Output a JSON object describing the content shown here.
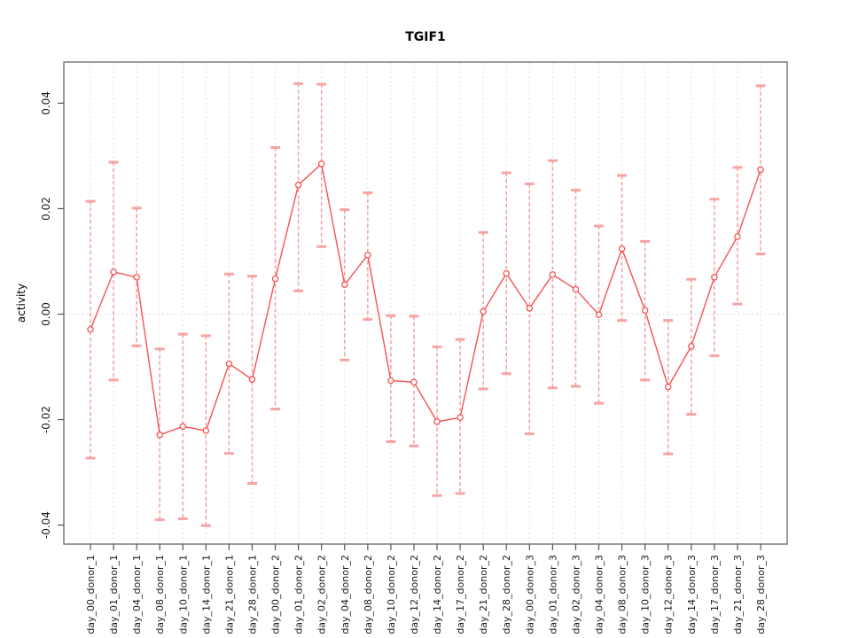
{
  "chart_data": {
    "type": "line",
    "title": "TGIF1",
    "xlabel": "",
    "ylabel": "activity",
    "legend_position": "none",
    "marker": "open-circle",
    "error_bars": true,
    "grid": {
      "vertical_dotted": true,
      "horizontal_zero_dotted": true
    },
    "ylim": [
      -0.0436,
      0.0478
    ],
    "yticks": [
      -0.04,
      -0.02,
      0,
      0.02,
      0.04
    ],
    "ytick_labels": [
      "-0.04",
      "-0.02",
      "0.00",
      "0.02",
      "0.04"
    ],
    "categories": [
      "day_00_donor_1",
      "day_01_donor_1",
      "day_04_donor_1",
      "day_08_donor_1",
      "day_10_donor_1",
      "day_14_donor_1",
      "day_21_donor_1",
      "day_28_donor_1",
      "day_00_donor_2",
      "day_01_donor_2",
      "day_02_donor_2",
      "day_04_donor_2",
      "day_08_donor_2",
      "day_10_donor_2",
      "day_12_donor_2",
      "day_14_donor_2",
      "day_17_donor_2",
      "day_21_donor_2",
      "day_28_donor_2",
      "day_00_donor_3",
      "day_01_donor_3",
      "day_02_donor_3",
      "day_04_donor_3",
      "day_08_donor_3",
      "day_10_donor_3",
      "day_12_donor_3",
      "day_14_donor_3",
      "day_17_donor_3",
      "day_21_donor_3",
      "day_28_donor_3"
    ],
    "series": [
      {
        "name": "activity",
        "values": [
          -0.0029,
          0.008,
          0.007,
          -0.0229,
          -0.0213,
          -0.0221,
          -0.0094,
          -0.0124,
          0.0067,
          0.0245,
          0.0285,
          0.0056,
          0.0112,
          -0.0126,
          -0.0129,
          -0.0204,
          -0.0196,
          0.0005,
          0.0077,
          0.0011,
          0.0075,
          0.0047,
          -0.0001,
          0.0124,
          0.0007,
          -0.0138,
          -0.0061,
          0.007,
          0.0147,
          0.0274
        ],
        "error_low": [
          -0.0273,
          -0.0125,
          -0.006,
          -0.039,
          -0.0388,
          -0.0401,
          -0.0264,
          -0.0321,
          -0.018,
          0.0044,
          0.0128,
          -0.0087,
          -0.001,
          -0.0242,
          -0.025,
          -0.0344,
          -0.034,
          -0.0142,
          -0.0113,
          -0.0227,
          -0.014,
          -0.0137,
          -0.0169,
          -0.0012,
          -0.0125,
          -0.0265,
          -0.019,
          -0.0079,
          0.0019,
          0.0114
        ],
        "error_high": [
          0.0214,
          0.0288,
          0.0201,
          -0.0066,
          -0.0038,
          -0.0041,
          0.0076,
          0.0072,
          0.0316,
          0.0437,
          0.0436,
          0.0198,
          0.023,
          -0.0003,
          -0.0004,
          -0.0062,
          -0.0048,
          0.0155,
          0.0268,
          0.0247,
          0.0291,
          0.0235,
          0.0167,
          0.0263,
          0.0138,
          -0.0012,
          0.0066,
          0.0218,
          0.0278,
          0.0433
        ]
      }
    ],
    "colors": {
      "line": "#f85252",
      "marker_stroke": "#f85252",
      "marker_fill": "#ffffff",
      "error_bar": "#f59595",
      "grid": "#d8d8d8",
      "zero_line": "#cccccc",
      "box": "#7a7a7a",
      "tick": "#555555",
      "text": "#1a1a1a",
      "background": "#ffffff"
    }
  }
}
